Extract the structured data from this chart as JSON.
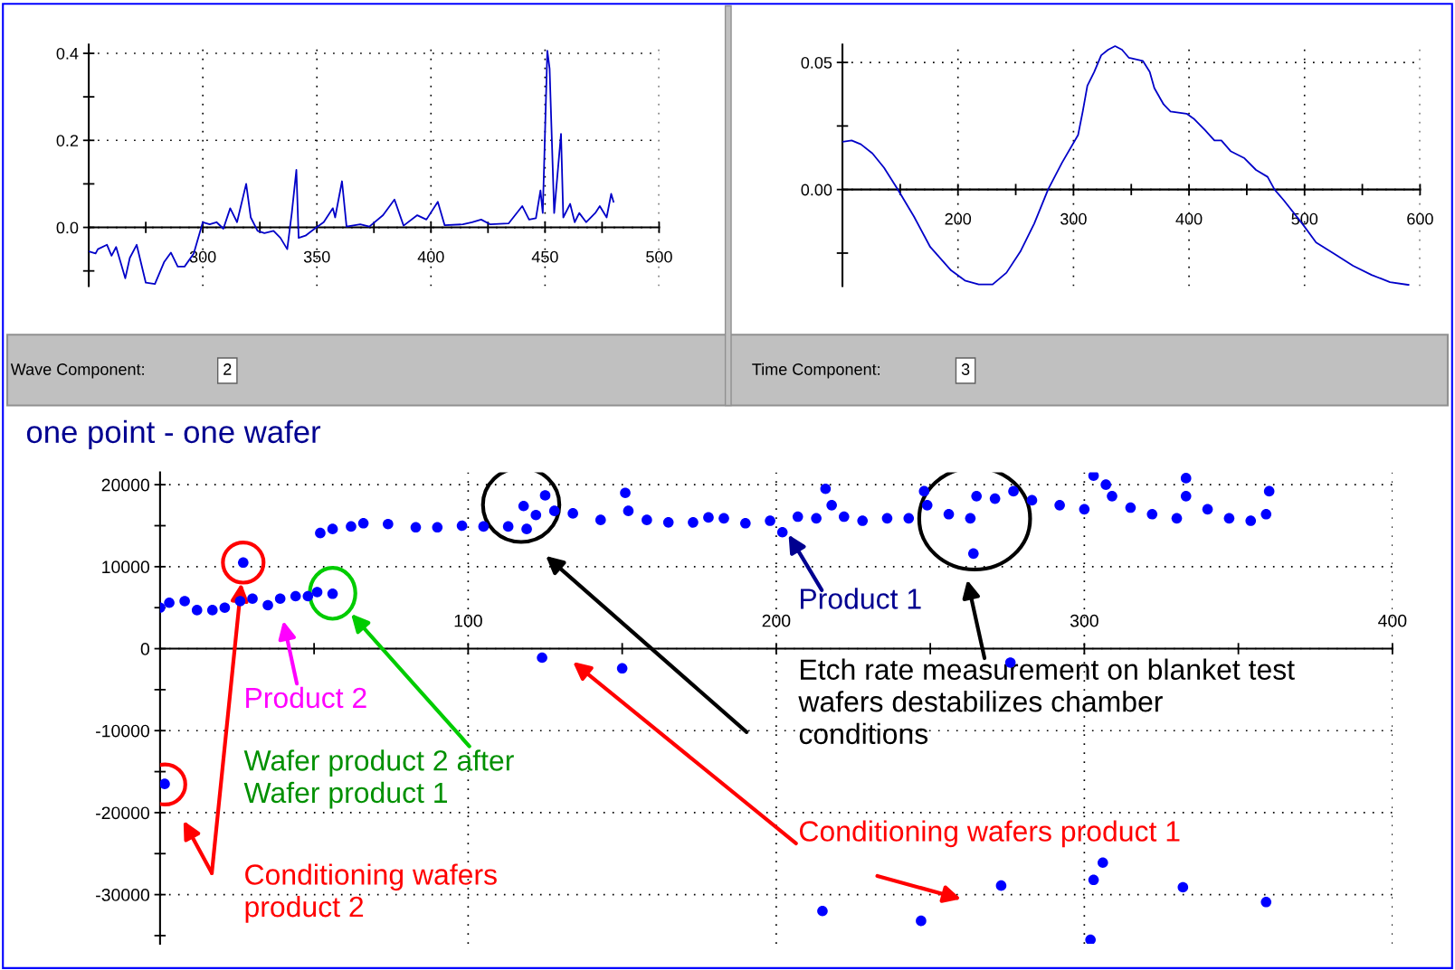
{
  "chart_data": [
    {
      "type": "line",
      "color": "#0000c8",
      "xlim": [
        250,
        500
      ],
      "ylim": [
        -0.135,
        0.42
      ],
      "grid": true,
      "xticks": [
        {
          "value": 275,
          "label": null
        },
        300,
        {
          "value": 325,
          "label": null
        },
        350,
        {
          "value": 375,
          "label": null
        },
        400,
        {
          "value": 425,
          "label": null
        },
        450,
        {
          "value": 475,
          "label": null
        },
        500
      ],
      "yticks": [
        {
          "value": -0.1,
          "label": null
        },
        {
          "value": 0,
          "label": "0.0"
        },
        {
          "value": 0.1,
          "label": null
        },
        0.2,
        {
          "value": 0.3,
          "label": null
        },
        0.4
      ],
      "annotations": [
        "Wave Component:",
        "2"
      ],
      "x": [
        250,
        253,
        254,
        258,
        260,
        262,
        266,
        268,
        271,
        275,
        279,
        283,
        286,
        289,
        292,
        296,
        300,
        303,
        306,
        309,
        312,
        315,
        319,
        321,
        324,
        327,
        331,
        334,
        337,
        339,
        341,
        342,
        345,
        349,
        353,
        357,
        358,
        361,
        363,
        369,
        373,
        379,
        384,
        388,
        394,
        398,
        403,
        406,
        414,
        418,
        422,
        426,
        434,
        440,
        443,
        446,
        448,
        449,
        451,
        452,
        454,
        457,
        458,
        461,
        463,
        465,
        468,
        472,
        474,
        477,
        479,
        480
      ],
      "values": [
        -0.055,
        -0.06,
        -0.05,
        -0.04,
        -0.065,
        -0.045,
        -0.117,
        -0.07,
        -0.04,
        -0.127,
        -0.13,
        -0.08,
        -0.058,
        -0.09,
        -0.09,
        -0.06,
        0.012,
        0.007,
        0.012,
        -0.003,
        0.044,
        0.012,
        0.1,
        0.023,
        -0.008,
        -0.013,
        -0.008,
        -0.024,
        -0.05,
        0.033,
        0.132,
        -0.024,
        -0.019,
        -0.003,
        0.012,
        0.044,
        0.023,
        0.106,
        0.002,
        0.007,
        0.002,
        0.028,
        0.064,
        0.004,
        0.028,
        0.018,
        0.059,
        0.005,
        0.007,
        0.012,
        0.018,
        0.007,
        0.009,
        0.049,
        0.018,
        0.021,
        0.085,
        0.033,
        0.406,
        0.365,
        0.033,
        0.215,
        0.023,
        0.054,
        0.012,
        0.033,
        0.012,
        0.033,
        0.049,
        0.023,
        0.077,
        0.059
      ]
    },
    {
      "type": "line",
      "color": "#0000c8",
      "xlim": [
        100,
        600
      ],
      "ylim": [
        -0.038,
        0.057
      ],
      "grid": true,
      "xticks": [
        {
          "value": 150,
          "label": null
        },
        200,
        {
          "value": 250,
          "label": null
        },
        300,
        {
          "value": 350,
          "label": null
        },
        400,
        {
          "value": 450,
          "label": null
        },
        500,
        {
          "value": 550,
          "label": null
        },
        600
      ],
      "yticks": [
        {
          "value": -0.025,
          "label": null
        },
        {
          "value": 0,
          "label": "0.00"
        },
        {
          "value": 0.025,
          "label": null
        },
        0.05
      ],
      "annotations": [
        "Time Component:",
        "3"
      ],
      "x": [
        100,
        108,
        116,
        126,
        136,
        148,
        162,
        176,
        194,
        206,
        218,
        230,
        242,
        254,
        266,
        278,
        290,
        304,
        308,
        312,
        318,
        324,
        330,
        336,
        342,
        348,
        360,
        366,
        370,
        378,
        384,
        398,
        404,
        414,
        422,
        428,
        436,
        448,
        458,
        468,
        474,
        482,
        498,
        510,
        526,
        542,
        558,
        574,
        590
      ],
      "values": [
        0.0188,
        0.0193,
        0.0178,
        0.0142,
        0.0086,
        0,
        -0.0107,
        -0.0226,
        -0.0318,
        -0.0358,
        -0.0373,
        -0.0373,
        -0.0327,
        -0.0244,
        -0.0134,
        0,
        0.0105,
        0.0215,
        0.0307,
        0.0408,
        0.0463,
        0.0528,
        0.055,
        0.0564,
        0.055,
        0.0518,
        0.0506,
        0.0463,
        0.0399,
        0.0335,
        0.0307,
        0.0298,
        0.0279,
        0.0233,
        0.0193,
        0.0193,
        0.0151,
        0.0123,
        0.0077,
        0.005,
        0,
        -0.0042,
        -0.0134,
        -0.0208,
        -0.0254,
        -0.03,
        -0.0336,
        -0.0364,
        -0.0375
      ]
    },
    {
      "type": "scatter",
      "title": "one point - one wafer",
      "color": "#0000ff",
      "marker": "circle",
      "xlim": [
        0,
        400
      ],
      "ylim": [
        -36000,
        21500
      ],
      "grid": true,
      "xticks": [
        {
          "value": 50,
          "label": null
        },
        100,
        {
          "value": 150,
          "label": null
        },
        200,
        {
          "value": 250,
          "label": null
        },
        300,
        {
          "value": 350,
          "label": null
        },
        400
      ],
      "yticks": [
        {
          "value": -35000,
          "label": null
        },
        -30000,
        {
          "value": -25000,
          "label": null
        },
        -20000,
        {
          "value": -15000,
          "label": null
        },
        -10000,
        {
          "value": -5000,
          "label": null
        },
        0,
        {
          "value": 5000,
          "label": null
        },
        10000,
        {
          "value": 15000,
          "label": null
        },
        20000
      ],
      "annotations": [
        "Product 2",
        "Wafer product 2 after\nWafer product 1",
        "Conditioning wafers\nproduct 2",
        "Product 1",
        "Etch rate measurement on blanket test\nwafers destabilizes chamber\nconditions",
        "Conditioning wafers product 1"
      ],
      "x": [
        1.5,
        0,
        3,
        8,
        12,
        17,
        21,
        26,
        27,
        30,
        35,
        39,
        44,
        48,
        51,
        52,
        56,
        56,
        62,
        66,
        74,
        83,
        90,
        98,
        105,
        113,
        118,
        119,
        122,
        124,
        125,
        128,
        134,
        143,
        150,
        151,
        152,
        158,
        165,
        173,
        178,
        183,
        190,
        198,
        202,
        207,
        213,
        215,
        216,
        218,
        222,
        228,
        236,
        243,
        247,
        248,
        249,
        256,
        263,
        264,
        265,
        271,
        273,
        276,
        277,
        283,
        292,
        300,
        302,
        303,
        303,
        306,
        307,
        309,
        315,
        322,
        330,
        332,
        333,
        333,
        340,
        347,
        354,
        359,
        359,
        360
      ],
      "values": [
        -16500,
        5000,
        5600,
        5800,
        4700,
        4700,
        5000,
        5800,
        10500,
        6100,
        5300,
        6100,
        6400,
        6400,
        6900,
        14100,
        6700,
        14600,
        14900,
        15300,
        15200,
        14800,
        14800,
        15000,
        14900,
        14900,
        17400,
        14600,
        16300,
        -1100,
        18700,
        16800,
        16500,
        15700,
        -2400,
        19000,
        16800,
        15700,
        15400,
        15400,
        16000,
        15900,
        15300,
        15600,
        14200,
        16100,
        15900,
        -32000,
        19500,
        17500,
        16100,
        15600,
        15900,
        15900,
        -33200,
        19200,
        17500,
        16400,
        15900,
        11600,
        18600,
        18300,
        -28900,
        -1700,
        19200,
        18100,
        17500,
        17000,
        -35500,
        21100,
        -28200,
        -26100,
        20000,
        18600,
        17200,
        16400,
        15900,
        -29100,
        20800,
        18600,
        17000,
        15900,
        15600,
        -30900,
        16400,
        19200
      ]
    }
  ]
}
